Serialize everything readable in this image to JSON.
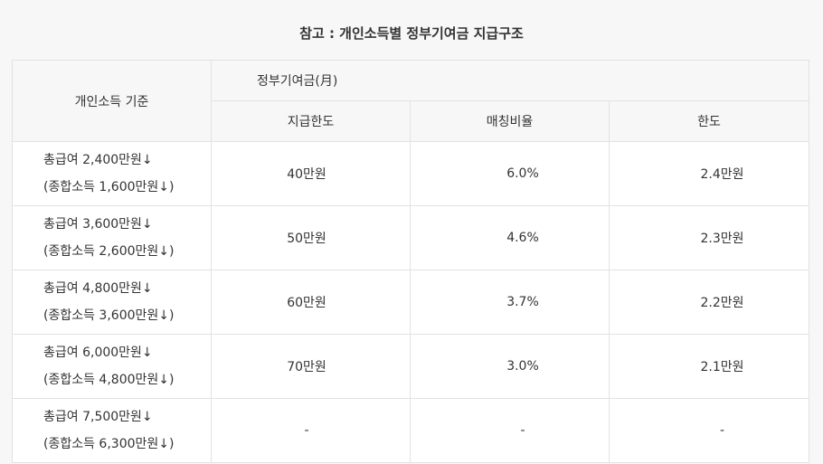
{
  "title": "참고 : 개인소득별 정부기여금 지급구조",
  "table": {
    "criteria_header": "개인소득 기준",
    "group_header": "정부기여금(月)",
    "sub_headers": [
      "지급한도",
      "매칭비율",
      "한도"
    ],
    "rows": [
      {
        "total_pay": "총급여 2,400만원↓",
        "total_income": "(종합소득 1,600만원↓)",
        "payment_limit": "40만원",
        "matching_ratio": "6.0%",
        "limit": "2.4만원"
      },
      {
        "total_pay": "총급여 3,600만원↓",
        "total_income": "(종합소득 2,600만원↓)",
        "payment_limit": "50만원",
        "matching_ratio": "4.6%",
        "limit": "2.3만원"
      },
      {
        "total_pay": "총급여 4,800만원↓",
        "total_income": "(종합소득 3,600만원↓)",
        "payment_limit": "60만원",
        "matching_ratio": "3.7%",
        "limit": "2.2만원"
      },
      {
        "total_pay": "총급여 6,000만원↓",
        "total_income": "(종합소득 4,800만원↓)",
        "payment_limit": "70만원",
        "matching_ratio": "3.0%",
        "limit": "2.1만원"
      },
      {
        "total_pay": "총급여 7,500만원↓",
        "total_income": "(종합소득 6,300만원↓)",
        "payment_limit": "-",
        "matching_ratio": "-",
        "limit": "-"
      }
    ]
  }
}
